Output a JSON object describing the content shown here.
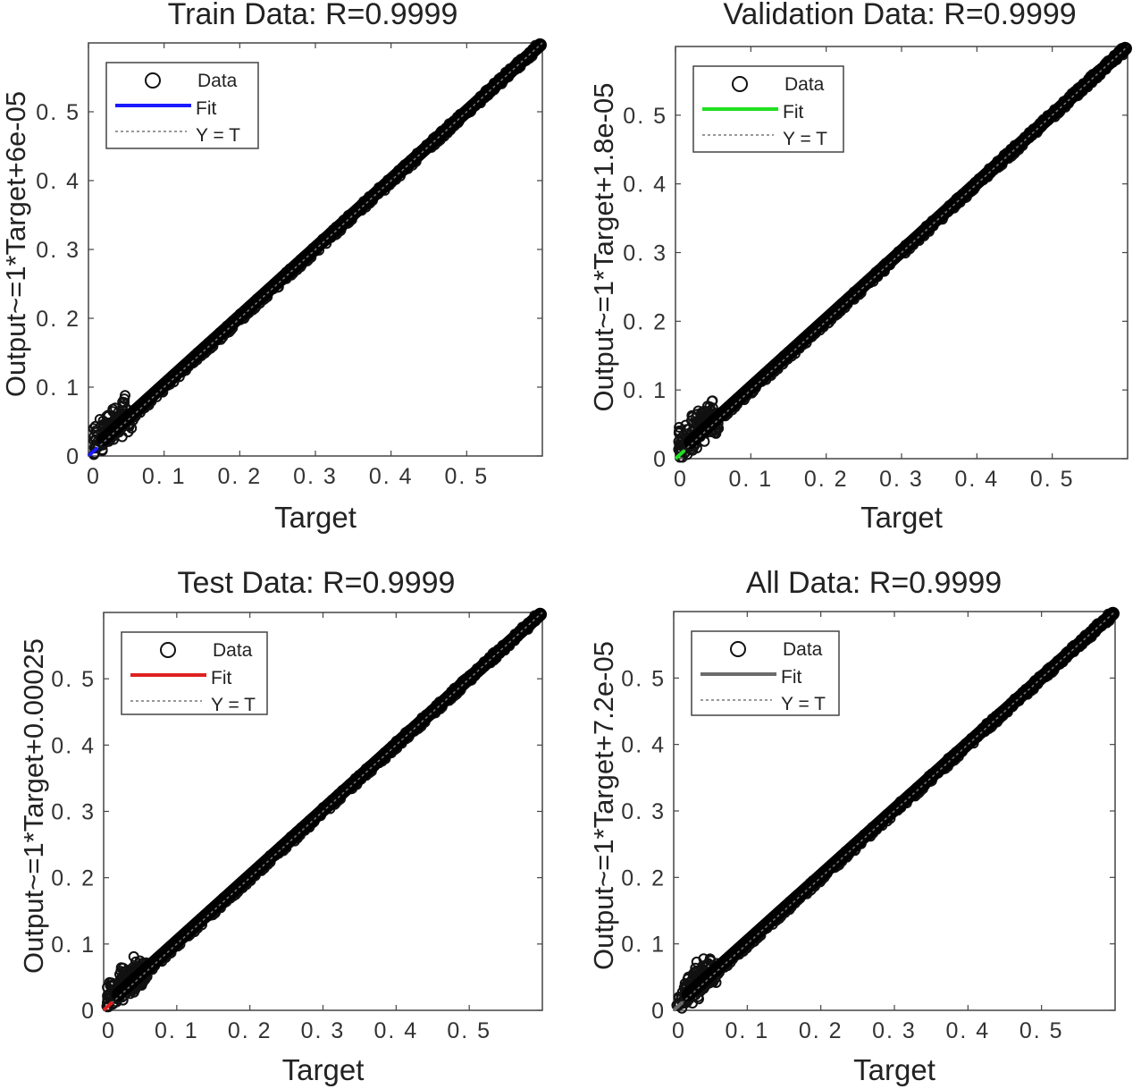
{
  "chart_data": [
    {
      "type": "scatter",
      "title": "Train Data: R=0.9999",
      "xlabel": "Target",
      "ylabel": "Output~=1*Target+6e-05",
      "xlim": [
        0,
        0.6
      ],
      "ylim": [
        0,
        0.6
      ],
      "xticks": [
        "0",
        "0. 1",
        "0. 2",
        "0. 3",
        "0. 4",
        "0. 5"
      ],
      "yticks": [
        "0",
        "0. 1",
        "0. 2",
        "0. 3",
        "0. 4",
        "0. 5"
      ],
      "fit": {
        "slope": 1,
        "intercept": 6e-05,
        "color": "#1a1aff"
      },
      "legend": [
        "Data",
        "Fit",
        "Y = T"
      ],
      "legend_position": "top-left",
      "grid": false,
      "series": [
        {
          "name": "Data",
          "x_range": [
            0,
            0.6
          ]
        }
      ]
    },
    {
      "type": "scatter",
      "title": "Validation Data: R=0.9999",
      "xlabel": "Target",
      "ylabel": "Output~=1*Target+1.8e-05",
      "xlim": [
        0,
        0.6
      ],
      "ylim": [
        0,
        0.6
      ],
      "xticks": [
        "0",
        "0. 1",
        "0. 2",
        "0. 3",
        "0. 4",
        "0. 5"
      ],
      "yticks": [
        "0",
        "0. 1",
        "0. 2",
        "0. 3",
        "0. 4",
        "0. 5"
      ],
      "fit": {
        "slope": 1,
        "intercept": 1.8e-05,
        "color": "#22e022"
      },
      "legend": [
        "Data",
        "Fit",
        "Y = T"
      ],
      "legend_position": "top-left",
      "grid": false,
      "series": [
        {
          "name": "Data",
          "x_range": [
            0,
            0.6
          ]
        }
      ]
    },
    {
      "type": "scatter",
      "title": "Test Data: R=0.9999",
      "xlabel": "Target",
      "ylabel": "Output~=1*Target+0.00025",
      "xlim": [
        0,
        0.6
      ],
      "ylim": [
        0,
        0.6
      ],
      "xticks": [
        "0",
        "0. 1",
        "0. 2",
        "0. 3",
        "0. 4",
        "0. 5"
      ],
      "yticks": [
        "0",
        "0. 1",
        "0. 2",
        "0. 3",
        "0. 4",
        "0. 5"
      ],
      "fit": {
        "slope": 1,
        "intercept": 0.00025,
        "color": "#e02020"
      },
      "legend": [
        "Data",
        "Fit",
        "Y = T"
      ],
      "legend_position": "top-left",
      "grid": false,
      "series": [
        {
          "name": "Data",
          "x_range": [
            0,
            0.6
          ]
        }
      ]
    },
    {
      "type": "scatter",
      "title": "All Data: R=0.9999",
      "xlabel": "Target",
      "ylabel": "Output~=1*Target+7.2e-05",
      "xlim": [
        0,
        0.6
      ],
      "ylim": [
        0,
        0.6
      ],
      "xticks": [
        "0",
        "0. 1",
        "0. 2",
        "0. 3",
        "0. 4",
        "0. 5"
      ],
      "yticks": [
        "0",
        "0. 1",
        "0. 2",
        "0. 3",
        "0. 4",
        "0. 5"
      ],
      "fit": {
        "slope": 1,
        "intercept": 7.2e-05,
        "color": "#6b6b6b"
      },
      "legend": [
        "Data",
        "Fit",
        "Y = T"
      ],
      "legend_position": "top-left",
      "grid": false,
      "series": [
        {
          "name": "Data",
          "x_range": [
            0,
            0.6
          ]
        }
      ]
    }
  ]
}
